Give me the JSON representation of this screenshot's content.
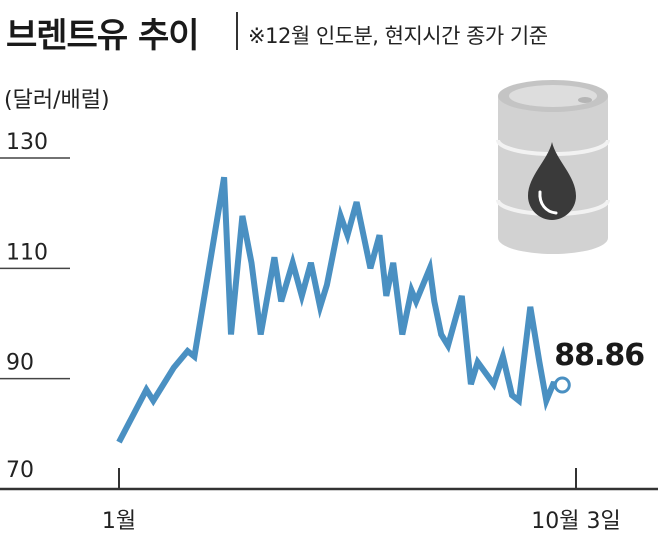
{
  "header": {
    "title": "브렌트유 추이",
    "subtitle": "※12월 인도분, 현지시간 종가 기준"
  },
  "chart_data": {
    "type": "line",
    "title": "브렌트유 추이",
    "subtitle": "※12월 인도분, 현지시간 종가 기준",
    "unit_label": "(달러/배럴)",
    "ylim": [
      70,
      130
    ],
    "yticks": [
      "130",
      "110",
      "90",
      "70"
    ],
    "yticks_values": [
      130,
      110,
      90,
      70
    ],
    "xtick_labels": [
      "1월",
      "10월 3일"
    ],
    "xlim": [
      0,
      100
    ],
    "xtick_positions": [
      0,
      100
    ],
    "grid": false,
    "series": [
      {
        "color": "#4a90c2",
        "x": [
          0,
          6,
          7.5,
          12,
          15,
          16.5,
          23,
          24.5,
          27,
          29,
          31,
          34,
          35.5,
          38,
          40,
          42,
          44,
          45.5,
          48.5,
          50,
          52,
          55,
          57,
          58.5,
          60,
          62,
          64,
          65,
          68,
          69,
          70.5,
          72,
          75,
          77,
          78.5,
          82,
          84,
          86,
          87.5,
          90,
          92,
          93.5,
          95,
          97
        ],
        "y": [
          78.5,
          88,
          86,
          92,
          95,
          94,
          126.5,
          98,
          119.5,
          111,
          98,
          112,
          104,
          111,
          105,
          111,
          103,
          107,
          119.5,
          116,
          122,
          110,
          116,
          105,
          111,
          98,
          106,
          104,
          110,
          104,
          98,
          96,
          105,
          89,
          93,
          89,
          94,
          87,
          86,
          103,
          93,
          86,
          89,
          88.86
        ]
      }
    ],
    "annotations": [
      {
        "text": "88.86"
      }
    ]
  }
}
